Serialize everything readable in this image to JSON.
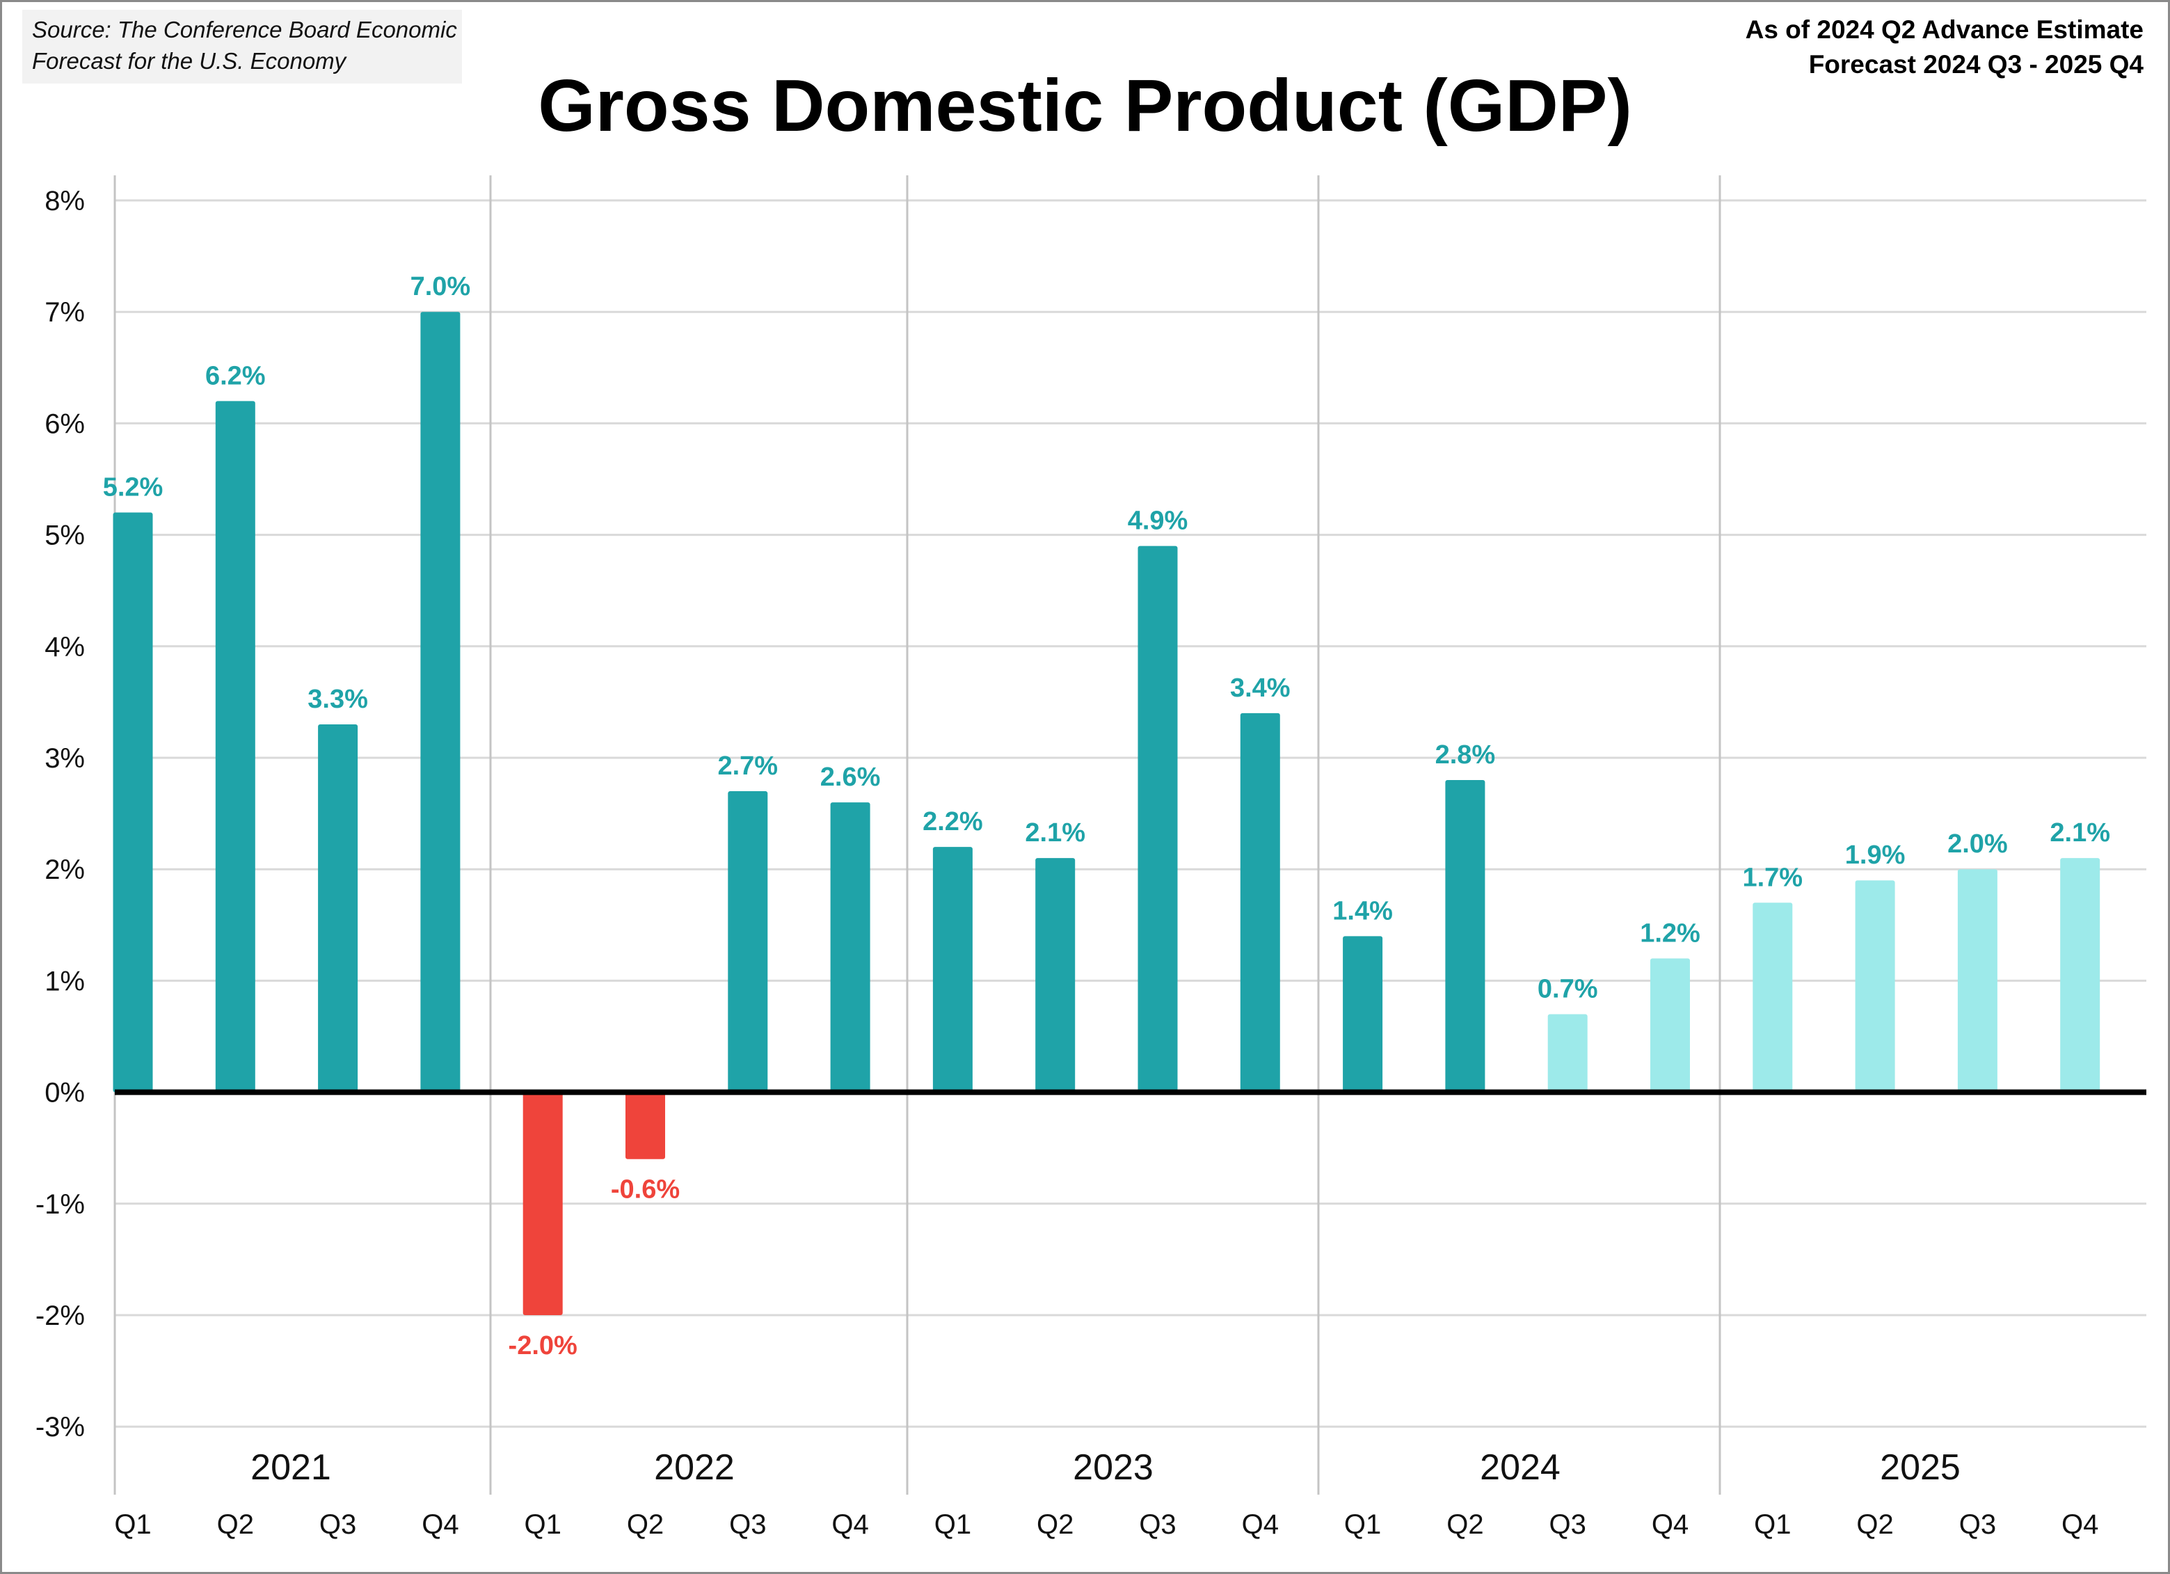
{
  "header": {
    "source_line1": "Source: The Conference Board Economic",
    "source_line2": "Forecast for the U.S. Economy",
    "asof_line1": "As of 2024 Q2 Advance Estimate",
    "asof_line2": "Forecast 2024 Q3 - 2025 Q4",
    "title": "Gross Domestic Product (GDP)"
  },
  "colors": {
    "actual": "#1fa3a8",
    "negative": "#ef443b",
    "forecast": "#9deaea",
    "label_positive": "#1fa3a8",
    "label_negative": "#ef443b"
  },
  "chart_data": {
    "type": "bar",
    "title": "Gross Domestic Product (GDP)",
    "xlabel": "",
    "ylabel": "",
    "ylim": [
      -3,
      8
    ],
    "yticks": [
      "8%",
      "7%",
      "6%",
      "5%",
      "4%",
      "3%",
      "2%",
      "1%",
      "0%",
      "-1%",
      "-2%",
      "-3%"
    ],
    "ytick_values": [
      8,
      7,
      6,
      5,
      4,
      3,
      2,
      1,
      0,
      -1,
      -2,
      -3
    ],
    "grid": true,
    "legend": "none",
    "groups": [
      "2021",
      "2022",
      "2023",
      "2024",
      "2025"
    ],
    "categories": [
      "Q1",
      "Q2",
      "Q3",
      "Q4",
      "Q1",
      "Q2",
      "Q3",
      "Q4",
      "Q1",
      "Q2",
      "Q3",
      "Q4",
      "Q1",
      "Q2",
      "Q3",
      "Q4",
      "Q1",
      "Q2",
      "Q3",
      "Q4"
    ],
    "values": [
      5.2,
      6.2,
      3.3,
      7.0,
      -2.0,
      -0.6,
      2.7,
      2.6,
      2.2,
      2.1,
      4.9,
      3.4,
      1.4,
      2.8,
      0.7,
      1.2,
      1.7,
      1.9,
      2.0,
      2.1
    ],
    "labels": [
      "5.2%",
      "6.2%",
      "3.3%",
      "7.0%",
      "-2.0%",
      "-0.6%",
      "2.7%",
      "2.6%",
      "2.2%",
      "2.1%",
      "4.9%",
      "3.4%",
      "1.4%",
      "2.8%",
      "0.7%",
      "1.2%",
      "1.7%",
      "1.9%",
      "2.0%",
      "2.1%"
    ],
    "kind": [
      "actual",
      "actual",
      "actual",
      "actual",
      "actual",
      "actual",
      "actual",
      "actual",
      "actual",
      "actual",
      "actual",
      "actual",
      "actual",
      "actual",
      "forecast",
      "forecast",
      "forecast",
      "forecast",
      "forecast",
      "forecast"
    ]
  }
}
